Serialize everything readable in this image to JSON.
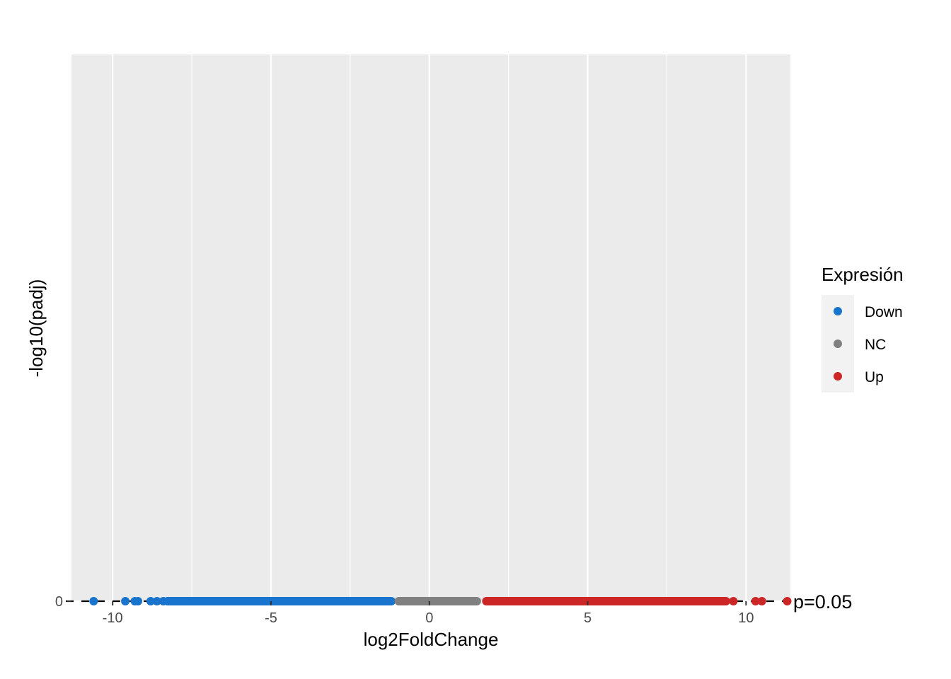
{
  "chart_data": {
    "type": "scatter",
    "title": "",
    "xlabel": "log2FoldChange",
    "ylabel": "-log10(padj)",
    "xlim": [
      -11.3,
      11.4
    ],
    "ylim": [
      0,
      17.3
    ],
    "x_ticks": [
      -10,
      -5,
      0,
      5,
      10
    ],
    "x_tick_labels": [
      "-10",
      "-5",
      "0",
      "5",
      "10"
    ],
    "y_ticks": [
      0
    ],
    "y_tick_labels": [
      "0"
    ],
    "grid": true,
    "legend": {
      "title": "Expresión",
      "position": "right",
      "entries": [
        {
          "label": "Down",
          "color": "#1874cd"
        },
        {
          "label": "NC",
          "color": "#808080"
        },
        {
          "label": "Up",
          "color": "#cd2626"
        }
      ]
    },
    "threshold_line": {
      "y": 0,
      "style": "dashed",
      "label": "p=0.05"
    },
    "series": [
      {
        "name": "Down",
        "color": "#1874cd",
        "points": [
          {
            "x": -10.6,
            "y": 0
          },
          {
            "x": -9.6,
            "y": 0
          },
          {
            "x": -9.3,
            "y": 0
          },
          {
            "x": -9.2,
            "y": 0
          },
          {
            "x": -8.8,
            "y": 0
          },
          {
            "x": -8.6,
            "y": 0
          },
          {
            "x": -8.4,
            "y": 0
          },
          {
            "x": -8.1,
            "y": 0
          },
          {
            "x": -7.8,
            "y": 0
          },
          {
            "x": -7.4,
            "y": 0
          },
          {
            "x": -7.0,
            "y": 0
          },
          {
            "x": -6.6,
            "y": 0
          },
          {
            "x": -6.2,
            "y": 0
          },
          {
            "x": -5.8,
            "y": 0
          },
          {
            "x": -5.4,
            "y": 0
          },
          {
            "x": -5.0,
            "y": 0
          },
          {
            "x": -4.6,
            "y": 0
          },
          {
            "x": -4.2,
            "y": 0
          },
          {
            "x": -3.8,
            "y": 0
          },
          {
            "x": -3.1,
            "y": 0
          },
          {
            "x": -2.7,
            "y": 0
          },
          {
            "x": -1.6,
            "y": 0
          },
          {
            "x": -1.2,
            "y": 0
          }
        ]
      },
      {
        "name": "NC",
        "color": "#808080",
        "points": [
          {
            "x": -3.5,
            "y": 0
          },
          {
            "x": -2.2,
            "y": 0
          },
          {
            "x": -1.9,
            "y": 0
          },
          {
            "x": -0.9,
            "y": 0
          },
          {
            "x": -0.4,
            "y": 0
          },
          {
            "x": 0.1,
            "y": 0
          },
          {
            "x": 0.6,
            "y": 0
          },
          {
            "x": 1.1,
            "y": 0
          },
          {
            "x": 1.5,
            "y": 0
          },
          {
            "x": 3.6,
            "y": 0
          },
          {
            "x": 3.9,
            "y": 0
          }
        ]
      },
      {
        "name": "Up",
        "color": "#cd2626",
        "points": [
          {
            "x": 1.8,
            "y": 0
          },
          {
            "x": 2.2,
            "y": 0
          },
          {
            "x": 2.7,
            "y": 0
          },
          {
            "x": 3.2,
            "y": 0
          },
          {
            "x": 4.3,
            "y": 0
          },
          {
            "x": 4.8,
            "y": 0
          },
          {
            "x": 5.3,
            "y": 0
          },
          {
            "x": 5.8,
            "y": 0
          },
          {
            "x": 6.3,
            "y": 0
          },
          {
            "x": 6.8,
            "y": 0
          },
          {
            "x": 7.3,
            "y": 0
          },
          {
            "x": 7.8,
            "y": 0
          },
          {
            "x": 8.3,
            "y": 0
          },
          {
            "x": 8.7,
            "y": 0
          },
          {
            "x": 9.0,
            "y": 0
          },
          {
            "x": 9.3,
            "y": 0
          },
          {
            "x": 9.6,
            "y": 0
          },
          {
            "x": 10.3,
            "y": 0
          },
          {
            "x": 10.5,
            "y": 0
          },
          {
            "x": 11.3,
            "y": 0
          }
        ]
      }
    ]
  }
}
